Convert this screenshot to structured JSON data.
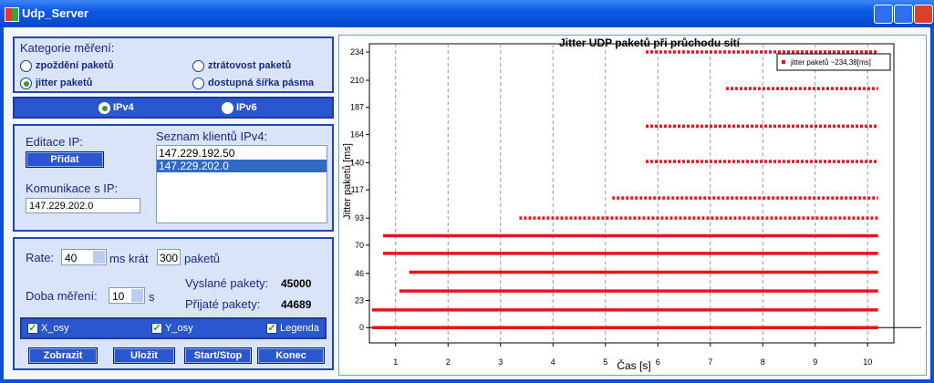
{
  "window": {
    "title": "Udp_Server"
  },
  "measurement": {
    "title": "Kategorie měření:",
    "options": [
      {
        "label": "zpoždění paketů",
        "selected": false
      },
      {
        "label": "ztrátovost paketů",
        "selected": false
      },
      {
        "label": "jitter paketů",
        "selected": true
      },
      {
        "label": "dostupná šířka pásma",
        "selected": false
      }
    ]
  },
  "ip_version": {
    "options": [
      {
        "label": "IPv4",
        "selected": true
      },
      {
        "label": "IPv6",
        "selected": false
      }
    ]
  },
  "ip_edit": {
    "edit_label": "Editace IP:",
    "add_button": "Přidat",
    "comm_label": "Komunikace s IP:",
    "comm_value": "147.229.202.0",
    "list_label": "Seznam klientů IPv4:",
    "list": [
      "147.229.192.50",
      "147.229.202.0"
    ],
    "selected_index": 1
  },
  "settings": {
    "rate_label": "Rate:",
    "rate_value": "40",
    "ms_text": "ms krát",
    "packets_value": "300",
    "packets_text": "paketů",
    "duration_label": "Doba měření:",
    "duration_value": "10",
    "duration_unit": "s",
    "sent_label": "Vyslané pakety:",
    "sent_value": 45000,
    "received_label": "Přijaté pakety:",
    "received_value": 44689
  },
  "checkboxes": [
    {
      "label": "X_osy",
      "checked": true
    },
    {
      "label": "Y_osy",
      "checked": true
    },
    {
      "label": "Legenda",
      "checked": true
    }
  ],
  "buttons": [
    "Zobrazit",
    "Uložit",
    "Start/Stop",
    "Konec"
  ],
  "chart_data": {
    "type": "scatter",
    "title": "Jitter UDP paketů při průchodu sítí",
    "x_label": "Čas [s]",
    "y_label": "Jitter paketů  [ms]",
    "series_name": "jitter paketů ~234,38[ms]",
    "color": "#e8141c",
    "levels": [
      {
        "y": 0,
        "x": [
          0.55,
          10.2
        ],
        "style": "solid"
      },
      {
        "y": 15,
        "x": [
          0.55,
          10.2
        ],
        "style": "solid"
      },
      {
        "y": 31,
        "x": [
          1.07,
          10.2
        ],
        "style": "solid"
      },
      {
        "y": 47,
        "x": [
          1.26,
          10.2
        ],
        "style": "solid"
      },
      {
        "y": 63,
        "x": [
          0.76,
          10.2
        ],
        "style": "solid"
      },
      {
        "y": 78,
        "x": [
          0.76,
          10.2
        ],
        "style": "solid"
      },
      {
        "y": 93,
        "x": [
          3.36,
          10.2
        ],
        "style": "dotted"
      },
      {
        "y": 110,
        "x": [
          5.13,
          10.2
        ],
        "style": "dotted"
      },
      {
        "y": 141,
        "x": [
          5.77,
          10.2
        ],
        "style": "dotted"
      },
      {
        "y": 171,
        "x": [
          5.77,
          10.2
        ],
        "style": "dotted"
      },
      {
        "y": 203,
        "x": [
          7.3,
          10.2
        ],
        "style": "dotted"
      },
      {
        "y": 234,
        "x": [
          5.77,
          10.2
        ],
        "style": "dotted"
      }
    ],
    "xlim": [
      0.5,
      10.5
    ],
    "ylim": [
      -13,
      241
    ],
    "xticks": [
      1,
      2,
      3,
      4,
      5,
      6,
      7,
      8,
      9,
      10
    ],
    "yticks": [
      0,
      23,
      46,
      70,
      93,
      117,
      140,
      164,
      187,
      210,
      234
    ],
    "xgrid": true,
    "legend": "upper right"
  }
}
